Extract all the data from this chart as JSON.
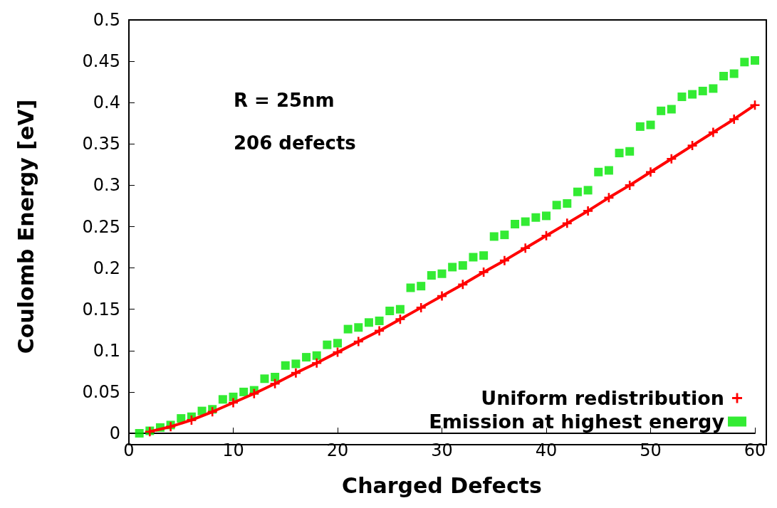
{
  "chart_data": {
    "type": "line",
    "xlabel": "Charged Defects",
    "ylabel": "Coulomb Energy [eV]",
    "annotations": [
      "R = 25nm",
      "206 defects"
    ],
    "xlim": [
      0,
      60
    ],
    "xticks": [
      0,
      10,
      20,
      30,
      40,
      50,
      60
    ],
    "ylim": [
      0,
      0.5
    ],
    "yticks": [
      0,
      0.05,
      0.1,
      0.15,
      0.2,
      0.25,
      0.3,
      0.35,
      0.4,
      0.45,
      0.5
    ],
    "grid": false,
    "legend": "bottom right",
    "series": [
      {
        "name": "Uniform redistribution",
        "color": "#ff0000",
        "marker": "cross",
        "line_style": "solid",
        "x": [
          2,
          4,
          6,
          8,
          10,
          12,
          14,
          16,
          18,
          20,
          22,
          24,
          26,
          28,
          30,
          32,
          34,
          36,
          38,
          40,
          42,
          44,
          46,
          48,
          50,
          52,
          54,
          56,
          58,
          60
        ],
        "values": [
          0.002,
          0.008,
          0.016,
          0.026,
          0.037,
          0.048,
          0.06,
          0.073,
          0.085,
          0.098,
          0.111,
          0.124,
          0.138,
          0.152,
          0.166,
          0.18,
          0.195,
          0.209,
          0.224,
          0.239,
          0.254,
          0.269,
          0.285,
          0.3,
          0.316,
          0.332,
          0.348,
          0.364,
          0.38,
          0.397
        ]
      },
      {
        "name": "Emission at highest energy",
        "type": "scatter",
        "color": "#00e600",
        "marker": "square",
        "x": [
          1,
          2,
          3,
          4,
          5,
          6,
          7,
          8,
          9,
          10,
          11,
          12,
          13,
          14,
          15,
          16,
          17,
          18,
          19,
          20,
          21,
          22,
          23,
          24,
          25,
          26,
          27,
          28,
          29,
          30,
          31,
          32,
          33,
          34,
          35,
          36,
          37,
          38,
          39,
          40,
          41,
          42,
          43,
          44,
          45,
          46,
          47,
          48,
          49,
          50,
          51,
          52,
          53,
          54,
          55,
          56,
          57,
          58,
          59,
          60
        ],
        "values": [
          0,
          0.003,
          0.007,
          0.01,
          0.018,
          0.02,
          0.027,
          0.029,
          0.041,
          0.044,
          0.05,
          0.052,
          0.066,
          0.068,
          0.082,
          0.084,
          0.092,
          0.094,
          0.107,
          0.109,
          0.126,
          0.128,
          0.134,
          0.136,
          0.148,
          0.15,
          0.176,
          0.178,
          0.191,
          0.193,
          0.201,
          0.203,
          0.213,
          0.215,
          0.238,
          0.24,
          0.253,
          0.256,
          0.261,
          0.263,
          0.276,
          0.278,
          0.292,
          0.294,
          0.316,
          0.318,
          0.339,
          0.341,
          0.371,
          0.373,
          0.39,
          0.392,
          0.407,
          0.41,
          0.414,
          0.417,
          0.432,
          0.435,
          0.449,
          0.451
        ]
      }
    ]
  }
}
